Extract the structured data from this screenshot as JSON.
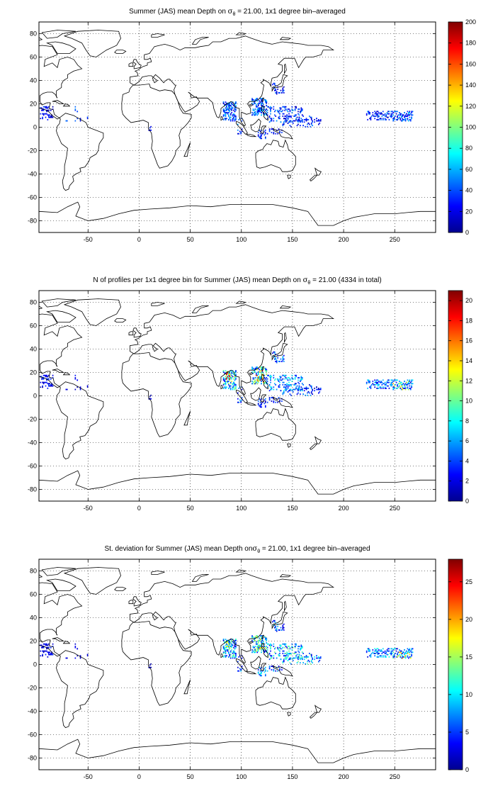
{
  "panels": [
    {
      "title_pre": "Summer (JAS) mean Depth on ",
      "title_sym": "σ",
      "title_sub": "θ",
      "title_post": " = 21.00, 1x1 degree bin–averaged",
      "colorbar": {
        "min": 0,
        "max": 200,
        "ticks": [
          "0",
          "20",
          "40",
          "60",
          "80",
          "100",
          "120",
          "140",
          "160",
          "180",
          "200"
        ]
      },
      "data_scale": 0.25
    },
    {
      "title_pre": "N of profiles per 1x1 degree bin for Summer (JAS) mean Depth on ",
      "title_sym": "σ",
      "title_sub": "θ",
      "title_post": " = 21.00 (4334 in total)",
      "colorbar": {
        "min": 0,
        "max": 21,
        "ticks": [
          "0",
          "2",
          "4",
          "6",
          "8",
          "10",
          "12",
          "14",
          "16",
          "18",
          "20"
        ]
      },
      "data_scale": 0.45
    },
    {
      "title_pre": "St. deviation for Summer (JAS) mean Depth on",
      "title_sym": "σ",
      "title_sub": "θ",
      "title_post": " = 21.00, 1x1 degree bin–averaged",
      "colorbar": {
        "min": 0,
        "max": 28,
        "ticks": [
          "0",
          "5",
          "10",
          "15",
          "20",
          "25"
        ]
      },
      "data_scale": 0.4
    }
  ],
  "axes": {
    "xlim": [
      -98,
      290
    ],
    "ylim": [
      -90,
      90
    ],
    "xticks": [
      "-50",
      "0",
      "50",
      "100",
      "150",
      "200",
      "250"
    ],
    "yticks": [
      "80",
      "60",
      "40",
      "20",
      "0",
      "-20",
      "-40",
      "-60",
      "-80"
    ],
    "grid": true
  },
  "colors": {
    "land_outline": "#000000",
    "grid": "#000000",
    "background": "#ffffff"
  }
}
